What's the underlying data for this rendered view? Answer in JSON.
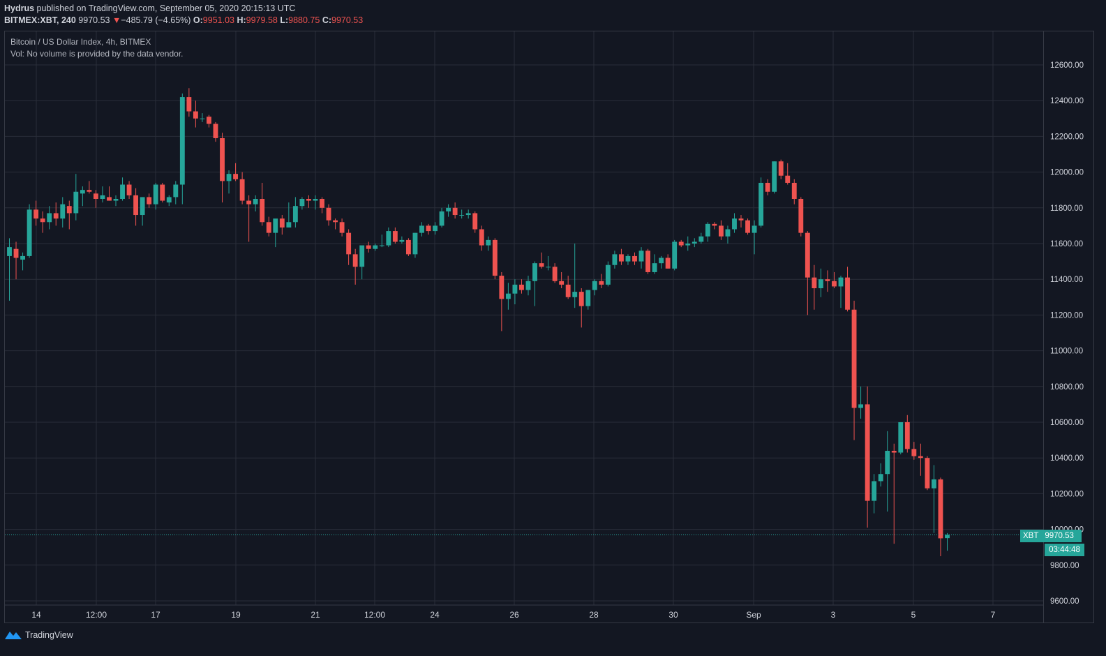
{
  "header": {
    "author": "Hydrus",
    "published": " published on TradingView.com, September 05, 2020 20:15:13 UTC",
    "symbol": "BITMEX:XBT, 240",
    "last": "9970.53",
    "arrow": "▼",
    "change": "−485.79 (−4.65%)",
    "o_label": "O:",
    "o_value": "9951.03",
    "h_label": "H:",
    "h_value": "9979.58",
    "l_label": "L:",
    "l_value": "9880.75",
    "c_label": "C:",
    "c_value": "9970.53"
  },
  "legend": {
    "title": "Bitcoin / US Dollar Index, 4h, BITMEX",
    "volume": "Vol: No volume is provided by the data vendor."
  },
  "price_tag": {
    "symbol": "XBT",
    "value": "9970.53",
    "countdown": "03:44:48"
  },
  "footer": {
    "brand": "TradingView"
  },
  "colors": {
    "background": "#131722",
    "up": "#26a69a",
    "down": "#ef5350",
    "grid": "#2a2e39",
    "text": "#d1d4dc"
  },
  "chart_data": {
    "type": "candlestick",
    "timeframe": "4h",
    "x_tick_labels": [
      "14",
      "12:00",
      "17",
      "19",
      "21",
      "12:00",
      "24",
      "26",
      "28",
      "30",
      "Sep",
      "3",
      "5",
      "7"
    ],
    "y_tick_labels": [
      "12600.00",
      "12400.00",
      "12200.00",
      "12000.00",
      "11800.00",
      "11600.00",
      "11400.00",
      "11200.00",
      "11000.00",
      "10800.00",
      "10600.00",
      "10400.00",
      "10200.00",
      "10000.00",
      "9800.00",
      "9600.00"
    ],
    "ylim": [
      9600,
      12700
    ],
    "grid": true,
    "last_price": 9970.53,
    "candles": [
      {
        "o": 11530,
        "h": 11630,
        "l": 11280,
        "c": 11580
      },
      {
        "o": 11570,
        "h": 11610,
        "l": 11400,
        "c": 11520
      },
      {
        "o": 11510,
        "h": 11550,
        "l": 11450,
        "c": 11530
      },
      {
        "o": 11530,
        "h": 11820,
        "l": 11520,
        "c": 11790
      },
      {
        "o": 11790,
        "h": 11840,
        "l": 11700,
        "c": 11740
      },
      {
        "o": 11740,
        "h": 11780,
        "l": 11660,
        "c": 11720
      },
      {
        "o": 11720,
        "h": 11810,
        "l": 11680,
        "c": 11770
      },
      {
        "o": 11770,
        "h": 11830,
        "l": 11700,
        "c": 11740
      },
      {
        "o": 11740,
        "h": 11860,
        "l": 11690,
        "c": 11820
      },
      {
        "o": 11810,
        "h": 11840,
        "l": 11680,
        "c": 11770
      },
      {
        "o": 11770,
        "h": 11990,
        "l": 11730,
        "c": 11890
      },
      {
        "o": 11880,
        "h": 11920,
        "l": 11810,
        "c": 11900
      },
      {
        "o": 11900,
        "h": 11950,
        "l": 11880,
        "c": 11890
      },
      {
        "o": 11880,
        "h": 11900,
        "l": 11800,
        "c": 11850
      },
      {
        "o": 11850,
        "h": 11920,
        "l": 11830,
        "c": 11870
      },
      {
        "o": 11860,
        "h": 11920,
        "l": 11840,
        "c": 11840
      },
      {
        "o": 11840,
        "h": 11870,
        "l": 11810,
        "c": 11850
      },
      {
        "o": 11850,
        "h": 11970,
        "l": 11840,
        "c": 11930
      },
      {
        "o": 11930,
        "h": 11950,
        "l": 11850,
        "c": 11870
      },
      {
        "o": 11870,
        "h": 11910,
        "l": 11700,
        "c": 11760
      },
      {
        "o": 11760,
        "h": 11860,
        "l": 11700,
        "c": 11860
      },
      {
        "o": 11860,
        "h": 11880,
        "l": 11800,
        "c": 11820
      },
      {
        "o": 11820,
        "h": 11940,
        "l": 11790,
        "c": 11930
      },
      {
        "o": 11930,
        "h": 11940,
        "l": 11830,
        "c": 11840
      },
      {
        "o": 11830,
        "h": 11870,
        "l": 11810,
        "c": 11860
      },
      {
        "o": 11860,
        "h": 11950,
        "l": 11820,
        "c": 11930
      },
      {
        "o": 11930,
        "h": 12440,
        "l": 11820,
        "c": 12420
      },
      {
        "o": 12420,
        "h": 12470,
        "l": 12310,
        "c": 12340
      },
      {
        "o": 12340,
        "h": 12400,
        "l": 12250,
        "c": 12300
      },
      {
        "o": 12300,
        "h": 12330,
        "l": 12280,
        "c": 12300
      },
      {
        "o": 12310,
        "h": 12320,
        "l": 12250,
        "c": 12270
      },
      {
        "o": 12270,
        "h": 12280,
        "l": 12170,
        "c": 12190
      },
      {
        "o": 12190,
        "h": 12220,
        "l": 11830,
        "c": 11950
      },
      {
        "o": 11950,
        "h": 12010,
        "l": 11880,
        "c": 11990
      },
      {
        "o": 11990,
        "h": 12050,
        "l": 11950,
        "c": 11960
      },
      {
        "o": 11960,
        "h": 12000,
        "l": 11820,
        "c": 11840
      },
      {
        "o": 11840,
        "h": 11870,
        "l": 11610,
        "c": 11820
      },
      {
        "o": 11820,
        "h": 11870,
        "l": 11780,
        "c": 11850
      },
      {
        "o": 11850,
        "h": 11940,
        "l": 11700,
        "c": 11720
      },
      {
        "o": 11720,
        "h": 11750,
        "l": 11640,
        "c": 11660
      },
      {
        "o": 11660,
        "h": 11720,
        "l": 11580,
        "c": 11740
      },
      {
        "o": 11740,
        "h": 11760,
        "l": 11650,
        "c": 11690
      },
      {
        "o": 11690,
        "h": 11830,
        "l": 11690,
        "c": 11720
      },
      {
        "o": 11720,
        "h": 11860,
        "l": 11690,
        "c": 11810
      },
      {
        "o": 11810,
        "h": 11860,
        "l": 11790,
        "c": 11850
      },
      {
        "o": 11850,
        "h": 11870,
        "l": 11800,
        "c": 11840
      },
      {
        "o": 11840,
        "h": 11870,
        "l": 11790,
        "c": 11850
      },
      {
        "o": 11850,
        "h": 11860,
        "l": 11770,
        "c": 11800
      },
      {
        "o": 11800,
        "h": 11820,
        "l": 11700,
        "c": 11730
      },
      {
        "o": 11730,
        "h": 11740,
        "l": 11680,
        "c": 11720
      },
      {
        "o": 11720,
        "h": 11740,
        "l": 11640,
        "c": 11660
      },
      {
        "o": 11660,
        "h": 11680,
        "l": 11480,
        "c": 11540
      },
      {
        "o": 11540,
        "h": 11570,
        "l": 11370,
        "c": 11470
      },
      {
        "o": 11470,
        "h": 11560,
        "l": 11400,
        "c": 11590
      },
      {
        "o": 11590,
        "h": 11610,
        "l": 11550,
        "c": 11570
      },
      {
        "o": 11570,
        "h": 11600,
        "l": 11560,
        "c": 11590
      },
      {
        "o": 11590,
        "h": 11650,
        "l": 11580,
        "c": 11590
      },
      {
        "o": 11590,
        "h": 11690,
        "l": 11580,
        "c": 11670
      },
      {
        "o": 11670,
        "h": 11690,
        "l": 11600,
        "c": 11610
      },
      {
        "o": 11610,
        "h": 11640,
        "l": 11600,
        "c": 11620
      },
      {
        "o": 11620,
        "h": 11630,
        "l": 11530,
        "c": 11540
      },
      {
        "o": 11540,
        "h": 11660,
        "l": 11520,
        "c": 11660
      },
      {
        "o": 11660,
        "h": 11720,
        "l": 11640,
        "c": 11700
      },
      {
        "o": 11700,
        "h": 11710,
        "l": 11650,
        "c": 11670
      },
      {
        "o": 11670,
        "h": 11720,
        "l": 11650,
        "c": 11700
      },
      {
        "o": 11700,
        "h": 11800,
        "l": 11690,
        "c": 11780
      },
      {
        "o": 11780,
        "h": 11820,
        "l": 11750,
        "c": 11800
      },
      {
        "o": 11800,
        "h": 11830,
        "l": 11740,
        "c": 11760
      },
      {
        "o": 11760,
        "h": 11790,
        "l": 11740,
        "c": 11760
      },
      {
        "o": 11760,
        "h": 11790,
        "l": 11740,
        "c": 11770
      },
      {
        "o": 11770,
        "h": 11780,
        "l": 11660,
        "c": 11680
      },
      {
        "o": 11680,
        "h": 11700,
        "l": 11560,
        "c": 11590
      },
      {
        "o": 11590,
        "h": 11640,
        "l": 11560,
        "c": 11620
      },
      {
        "o": 11620,
        "h": 11630,
        "l": 11400,
        "c": 11420
      },
      {
        "o": 11420,
        "h": 11440,
        "l": 11110,
        "c": 11290
      },
      {
        "o": 11290,
        "h": 11380,
        "l": 11230,
        "c": 11320
      },
      {
        "o": 11320,
        "h": 11400,
        "l": 11260,
        "c": 11370
      },
      {
        "o": 11370,
        "h": 11400,
        "l": 11320,
        "c": 11340
      },
      {
        "o": 11340,
        "h": 11420,
        "l": 11310,
        "c": 11390
      },
      {
        "o": 11390,
        "h": 11500,
        "l": 11250,
        "c": 11490
      },
      {
        "o": 11490,
        "h": 11550,
        "l": 11460,
        "c": 11470
      },
      {
        "o": 11470,
        "h": 11530,
        "l": 11450,
        "c": 11470
      },
      {
        "o": 11470,
        "h": 11490,
        "l": 11380,
        "c": 11390
      },
      {
        "o": 11390,
        "h": 11440,
        "l": 11350,
        "c": 11370
      },
      {
        "o": 11370,
        "h": 11420,
        "l": 11290,
        "c": 11300
      },
      {
        "o": 11300,
        "h": 11600,
        "l": 11240,
        "c": 11330
      },
      {
        "o": 11330,
        "h": 11350,
        "l": 11130,
        "c": 11250
      },
      {
        "o": 11250,
        "h": 11340,
        "l": 11230,
        "c": 11340
      },
      {
        "o": 11340,
        "h": 11400,
        "l": 11310,
        "c": 11390
      },
      {
        "o": 11390,
        "h": 11430,
        "l": 11350,
        "c": 11370
      },
      {
        "o": 11370,
        "h": 11500,
        "l": 11360,
        "c": 11480
      },
      {
        "o": 11480,
        "h": 11560,
        "l": 11460,
        "c": 11540
      },
      {
        "o": 11540,
        "h": 11570,
        "l": 11480,
        "c": 11500
      },
      {
        "o": 11500,
        "h": 11540,
        "l": 11480,
        "c": 11530
      },
      {
        "o": 11530,
        "h": 11550,
        "l": 11480,
        "c": 11500
      },
      {
        "o": 11500,
        "h": 11580,
        "l": 11460,
        "c": 11560
      },
      {
        "o": 11560,
        "h": 11570,
        "l": 11430,
        "c": 11440
      },
      {
        "o": 11440,
        "h": 11540,
        "l": 11430,
        "c": 11490
      },
      {
        "o": 11490,
        "h": 11530,
        "l": 11460,
        "c": 11520
      },
      {
        "o": 11520,
        "h": 11540,
        "l": 11460,
        "c": 11460
      },
      {
        "o": 11460,
        "h": 11620,
        "l": 11450,
        "c": 11610
      },
      {
        "o": 11610,
        "h": 11620,
        "l": 11580,
        "c": 11590
      },
      {
        "o": 11590,
        "h": 11640,
        "l": 11560,
        "c": 11600
      },
      {
        "o": 11600,
        "h": 11630,
        "l": 11580,
        "c": 11610
      },
      {
        "o": 11610,
        "h": 11660,
        "l": 11600,
        "c": 11640
      },
      {
        "o": 11640,
        "h": 11720,
        "l": 11610,
        "c": 11710
      },
      {
        "o": 11710,
        "h": 11720,
        "l": 11680,
        "c": 11700
      },
      {
        "o": 11700,
        "h": 11730,
        "l": 11620,
        "c": 11640
      },
      {
        "o": 11640,
        "h": 11700,
        "l": 11600,
        "c": 11680
      },
      {
        "o": 11680,
        "h": 11770,
        "l": 11660,
        "c": 11740
      },
      {
        "o": 11740,
        "h": 11760,
        "l": 11690,
        "c": 11730
      },
      {
        "o": 11730,
        "h": 11740,
        "l": 11650,
        "c": 11660
      },
      {
        "o": 11660,
        "h": 11730,
        "l": 11540,
        "c": 11700
      },
      {
        "o": 11700,
        "h": 11970,
        "l": 11690,
        "c": 11940
      },
      {
        "o": 11940,
        "h": 11960,
        "l": 11870,
        "c": 11890
      },
      {
        "o": 11890,
        "h": 12060,
        "l": 11880,
        "c": 12060
      },
      {
        "o": 12060,
        "h": 12070,
        "l": 11960,
        "c": 11980
      },
      {
        "o": 11980,
        "h": 12050,
        "l": 11930,
        "c": 11940
      },
      {
        "o": 11940,
        "h": 11960,
        "l": 11820,
        "c": 11850
      },
      {
        "o": 11850,
        "h": 11860,
        "l": 11640,
        "c": 11660
      },
      {
        "o": 11660,
        "h": 11670,
        "l": 11200,
        "c": 11410
      },
      {
        "o": 11410,
        "h": 11480,
        "l": 11230,
        "c": 11350
      },
      {
        "o": 11350,
        "h": 11460,
        "l": 11300,
        "c": 11400
      },
      {
        "o": 11400,
        "h": 11450,
        "l": 11330,
        "c": 11390
      },
      {
        "o": 11390,
        "h": 11440,
        "l": 11350,
        "c": 11360
      },
      {
        "o": 11360,
        "h": 11420,
        "l": 11240,
        "c": 11410
      },
      {
        "o": 11410,
        "h": 11470,
        "l": 11220,
        "c": 11230
      },
      {
        "o": 11230,
        "h": 11280,
        "l": 10500,
        "c": 10680
      },
      {
        "o": 10680,
        "h": 10800,
        "l": 10620,
        "c": 10700
      },
      {
        "o": 10700,
        "h": 10800,
        "l": 10010,
        "c": 10160
      },
      {
        "o": 10160,
        "h": 10310,
        "l": 10090,
        "c": 10270
      },
      {
        "o": 10270,
        "h": 10370,
        "l": 10240,
        "c": 10310
      },
      {
        "o": 10310,
        "h": 10550,
        "l": 10100,
        "c": 10440
      },
      {
        "o": 10440,
        "h": 10480,
        "l": 9920,
        "c": 10430
      },
      {
        "o": 10430,
        "h": 10600,
        "l": 10420,
        "c": 10600
      },
      {
        "o": 10600,
        "h": 10640,
        "l": 10430,
        "c": 10450
      },
      {
        "o": 10450,
        "h": 10490,
        "l": 10390,
        "c": 10410
      },
      {
        "o": 10410,
        "h": 10480,
        "l": 10300,
        "c": 10400
      },
      {
        "o": 10400,
        "h": 10410,
        "l": 10220,
        "c": 10230
      },
      {
        "o": 10230,
        "h": 10360,
        "l": 9980,
        "c": 10280
      },
      {
        "o": 10280,
        "h": 10290,
        "l": 9850,
        "c": 9950
      },
      {
        "o": 9951.03,
        "h": 9979.58,
        "l": 9880.75,
        "c": 9970.53
      }
    ]
  }
}
